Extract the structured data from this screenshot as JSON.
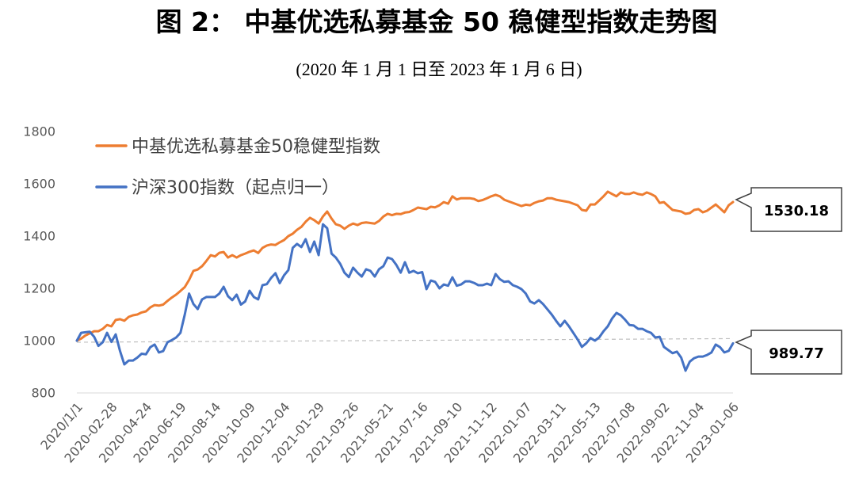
{
  "chart_data": {
    "type": "line",
    "title": "图 2： 中基优选私募基金 50 稳健型指数走势图",
    "subtitle": "(2020 年 1 月 1 日至 2023 年 1 月 6 日)",
    "ylim": [
      800,
      1800
    ],
    "y_ticks": [
      1800,
      1600,
      1400,
      1200,
      1000,
      800
    ],
    "x_ticks": [
      {
        "label": "2020/1/1",
        "index": 0
      },
      {
        "label": "2020-02-28",
        "index": 8
      },
      {
        "label": "2020-04-24",
        "index": 16
      },
      {
        "label": "2020-06-19",
        "index": 24
      },
      {
        "label": "2020-08-14",
        "index": 32
      },
      {
        "label": "2020-10-09",
        "index": 40
      },
      {
        "label": "2020-12-04",
        "index": 48
      },
      {
        "label": "2021-01-29",
        "index": 56
      },
      {
        "label": "2021-03-26",
        "index": 64
      },
      {
        "label": "2021-05-21",
        "index": 72
      },
      {
        "label": "2021-07-16",
        "index": 80
      },
      {
        "label": "2021-09-10",
        "index": 88
      },
      {
        "label": "2021-11-12",
        "index": 96
      },
      {
        "label": "2022-01-07",
        "index": 104
      },
      {
        "label": "2022-03-11",
        "index": 112
      },
      {
        "label": "2022-05-13",
        "index": 120
      },
      {
        "label": "2022-07-08",
        "index": 128
      },
      {
        "label": "2022-09-02",
        "index": 136
      },
      {
        "label": "2022-11-04",
        "index": 144
      },
      {
        "label": "2023-01-06",
        "index": 152
      }
    ],
    "legend_position": "top-left",
    "series": [
      {
        "name": "中基优选私募基金50稳健型指数",
        "color": "#ED7D31",
        "values": [
          1000,
          1008,
          1020,
          1028,
          1036,
          1036,
          1045,
          1060,
          1055,
          1079,
          1082,
          1076,
          1091,
          1097,
          1100,
          1108,
          1112,
          1127,
          1136,
          1134,
          1138,
          1152,
          1165,
          1176,
          1190,
          1205,
          1232,
          1267,
          1272,
          1285,
          1305,
          1327,
          1322,
          1336,
          1339,
          1318,
          1327,
          1318,
          1327,
          1333,
          1340,
          1345,
          1335,
          1355,
          1364,
          1368,
          1366,
          1376,
          1385,
          1400,
          1409,
          1424,
          1435,
          1455,
          1470,
          1461,
          1448,
          1475,
          1494,
          1467,
          1445,
          1440,
          1428,
          1440,
          1448,
          1442,
          1450,
          1452,
          1450,
          1448,
          1458,
          1475,
          1485,
          1480,
          1485,
          1484,
          1490,
          1492,
          1500,
          1509,
          1506,
          1503,
          1512,
          1510,
          1518,
          1530,
          1524,
          1552,
          1540,
          1545,
          1545,
          1545,
          1542,
          1534,
          1538,
          1545,
          1552,
          1558,
          1552,
          1539,
          1533,
          1527,
          1521,
          1515,
          1520,
          1518,
          1527,
          1533,
          1536,
          1545,
          1545,
          1539,
          1536,
          1533,
          1530,
          1524,
          1518,
          1500,
          1497,
          1521,
          1521,
          1536,
          1552,
          1570,
          1561,
          1552,
          1567,
          1561,
          1561,
          1567,
          1561,
          1558,
          1567,
          1561,
          1552,
          1527,
          1530,
          1515,
          1500,
          1497,
          1494,
          1485,
          1488,
          1500,
          1503,
          1491,
          1497,
          1509,
          1521,
          1506,
          1491,
          1518,
          1530.18
        ]
      },
      {
        "name": "沪深300指数（起点归一）",
        "color": "#4472C4",
        "values": [
          1000,
          1030,
          1032,
          1034,
          1015,
          980,
          994,
          1030,
          995,
          1024,
          960,
          909,
          924,
          924,
          935,
          950,
          948,
          975,
          985,
          955,
          960,
          994,
          1002,
          1012,
          1030,
          1100,
          1180,
          1140,
          1121,
          1158,
          1167,
          1167,
          1167,
          1180,
          1206,
          1170,
          1155,
          1176,
          1138,
          1150,
          1191,
          1167,
          1158,
          1212,
          1216,
          1240,
          1258,
          1220,
          1250,
          1270,
          1355,
          1370,
          1358,
          1388,
          1339,
          1379,
          1327,
          1445,
          1430,
          1333,
          1318,
          1294,
          1260,
          1243,
          1279,
          1260,
          1245,
          1273,
          1267,
          1245,
          1273,
          1285,
          1318,
          1312,
          1290,
          1260,
          1300,
          1260,
          1267,
          1258,
          1262,
          1197,
          1230,
          1225,
          1200,
          1215,
          1210,
          1242,
          1210,
          1215,
          1227,
          1227,
          1221,
          1212,
          1212,
          1218,
          1212,
          1255,
          1235,
          1225,
          1227,
          1212,
          1206,
          1197,
          1180,
          1150,
          1142,
          1155,
          1140,
          1120,
          1100,
          1076,
          1055,
          1076,
          1055,
          1030,
          1005,
          976,
          990,
          1010,
          1000,
          1012,
          1036,
          1055,
          1085,
          1106,
          1097,
          1080,
          1060,
          1058,
          1045,
          1045,
          1036,
          1030,
          1012,
          1015,
          976,
          964,
          952,
          958,
          935,
          885,
          920,
          933,
          939,
          939,
          945,
          955,
          985,
          975,
          955,
          961,
          989.77
        ]
      }
    ],
    "reference_line": {
      "from": 994,
      "to": 1008,
      "color": "#BFBFBF"
    },
    "annotations": [
      {
        "text": "1530.18",
        "series": 0
      },
      {
        "text": "989.77",
        "series": 1
      }
    ]
  }
}
